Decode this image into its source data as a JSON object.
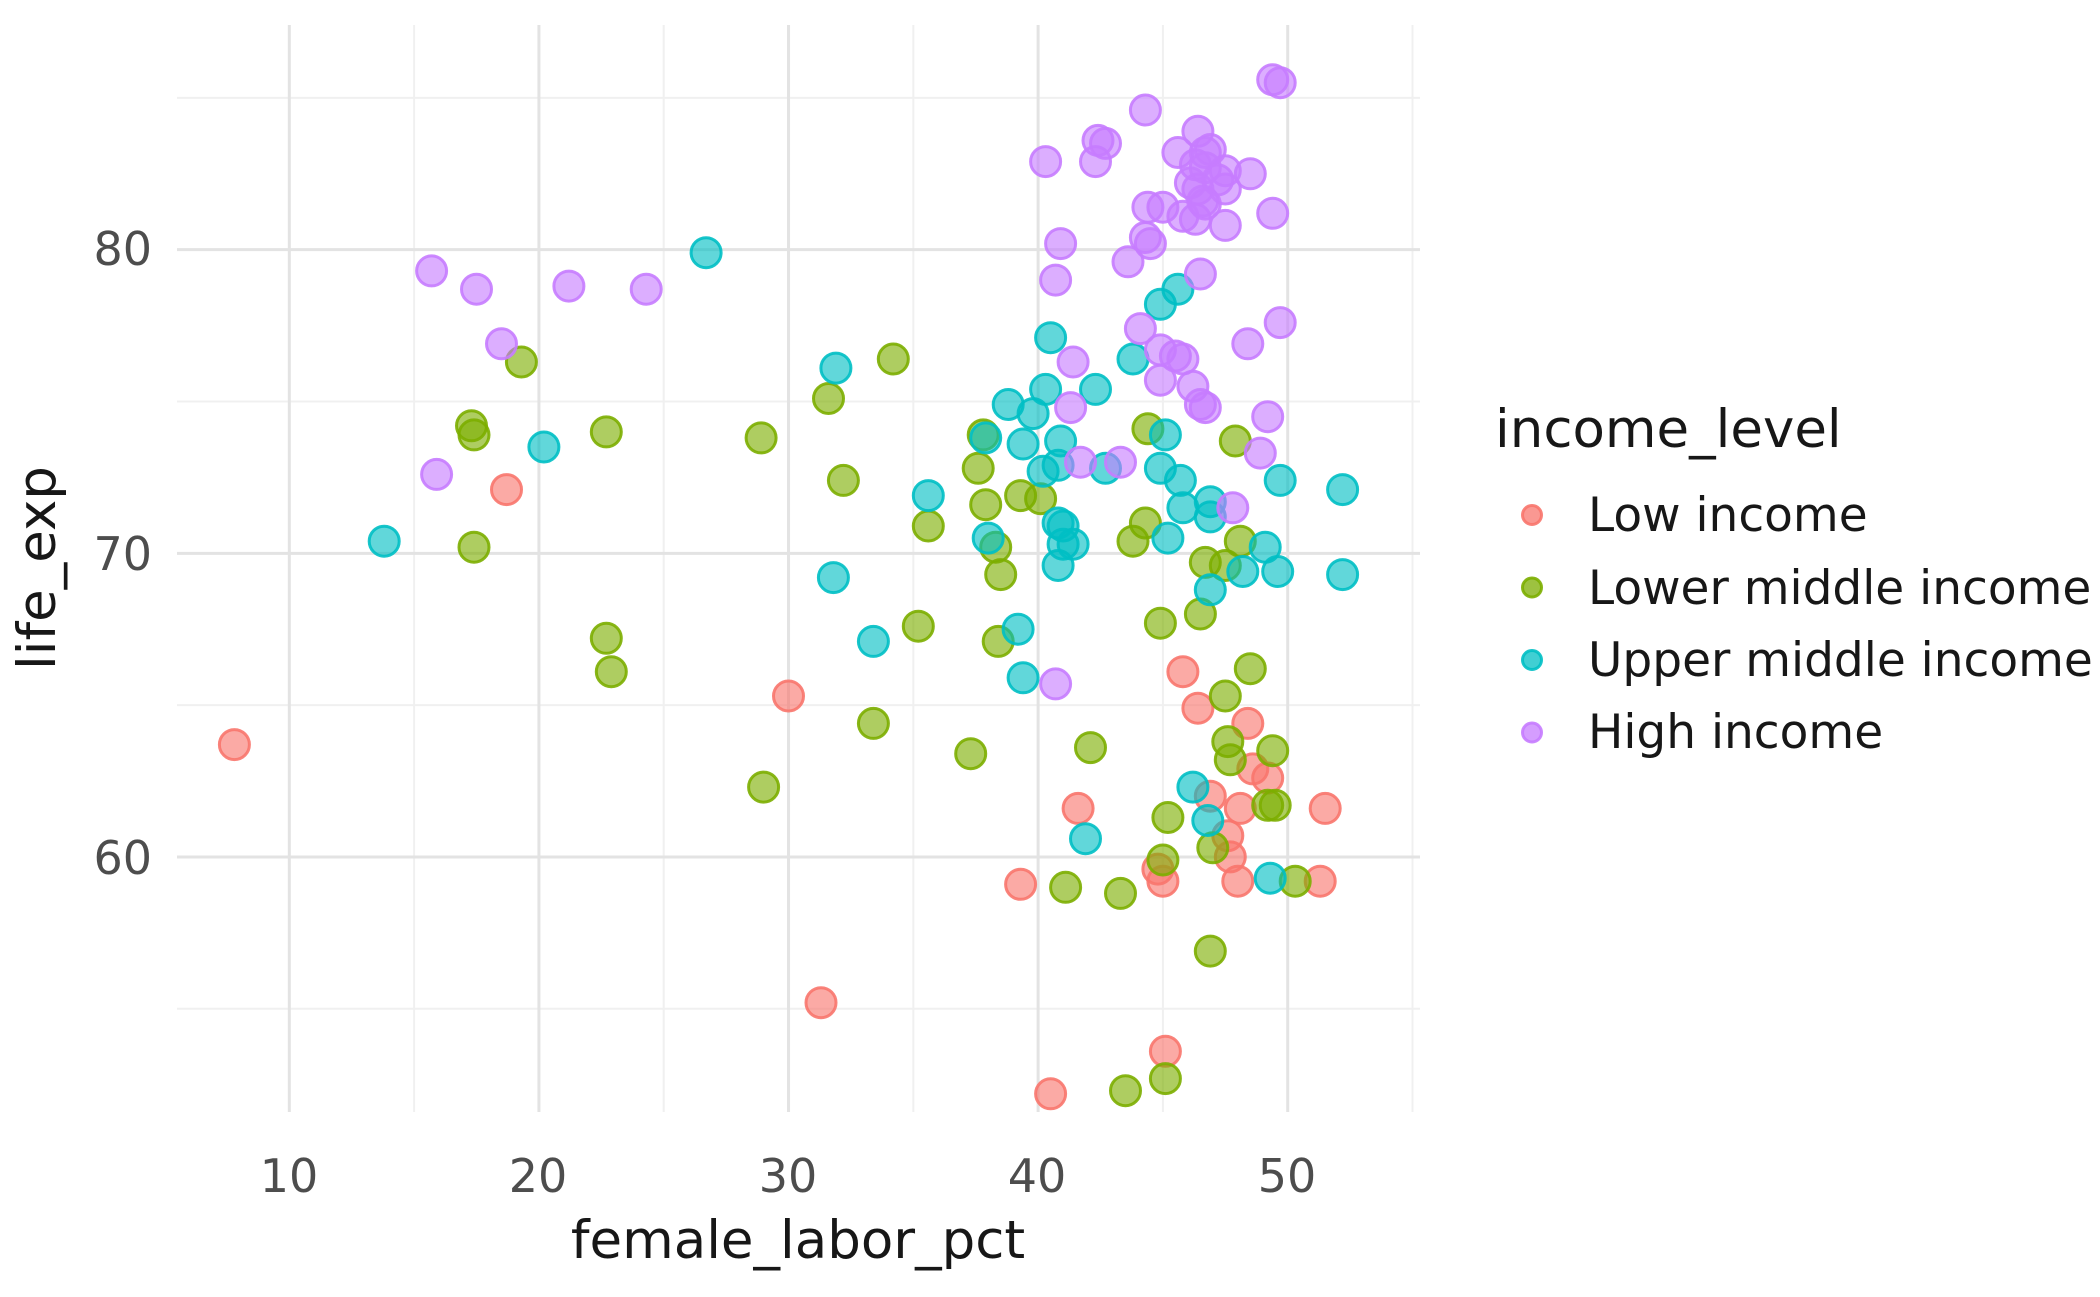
{
  "chart_data": {
    "type": "scatter",
    "title": "",
    "xlabel": "female_labor_pct",
    "ylabel": "life_exp",
    "xlim": [
      5.5,
      55.3
    ],
    "ylim": [
      51.6,
      87.4
    ],
    "grid": true,
    "x_ticks": [
      10,
      20,
      30,
      40,
      50
    ],
    "x_tick_labels": [
      "10",
      "20",
      "30",
      "40",
      "50"
    ],
    "y_ticks": [
      60,
      70,
      80
    ],
    "y_tick_labels": [
      "60",
      "70",
      "80"
    ],
    "x_minor_ticks": [
      15,
      25,
      35,
      45,
      55
    ],
    "y_minor_ticks": [
      55,
      65,
      75,
      85
    ],
    "legend": {
      "title": "income_level",
      "position": "right",
      "entries": [
        {
          "label": "Low income",
          "color": "#F8766D"
        },
        {
          "label": "Lower middle income",
          "color": "#7CAE00"
        },
        {
          "label": "Upper middle income",
          "color": "#00BFC4"
        },
        {
          "label": "High income",
          "color": "#C77CFF"
        }
      ]
    },
    "style": {
      "background": "#ffffff",
      "major_grid_color": "#e3e3e3",
      "minor_grid_color": "#f0f0f0",
      "point_fill_opacity": 0.62,
      "point_radius": 15,
      "point_stroke_width": 3
    },
    "series": [
      {
        "name": "Low income",
        "color": "#F8766D",
        "points": [
          [
            7.8,
            63.7
          ],
          [
            18.7,
            72.1
          ],
          [
            30.0,
            65.3
          ],
          [
            31.3,
            55.2
          ],
          [
            39.3,
            59.1
          ],
          [
            40.5,
            52.2
          ],
          [
            41.6,
            61.6
          ],
          [
            44.8,
            59.6
          ],
          [
            45.0,
            59.2
          ],
          [
            45.1,
            53.6
          ],
          [
            45.8,
            66.1
          ],
          [
            46.4,
            64.9
          ],
          [
            46.9,
            62.0
          ],
          [
            47.6,
            60.7
          ],
          [
            47.7,
            60.0
          ],
          [
            48.0,
            59.2
          ],
          [
            48.1,
            61.6
          ],
          [
            48.4,
            64.4
          ],
          [
            48.6,
            62.9
          ],
          [
            49.2,
            62.6
          ],
          [
            51.3,
            59.2
          ],
          [
            51.5,
            61.6
          ]
        ]
      },
      {
        "name": "Lower middle income",
        "color": "#7CAE00",
        "points": [
          [
            17.3,
            74.2
          ],
          [
            17.4,
            73.9
          ],
          [
            17.4,
            70.2
          ],
          [
            19.3,
            76.3
          ],
          [
            22.7,
            74.0
          ],
          [
            22.7,
            67.2
          ],
          [
            22.9,
            66.1
          ],
          [
            28.9,
            73.8
          ],
          [
            29.0,
            62.3
          ],
          [
            31.6,
            75.1
          ],
          [
            32.2,
            72.4
          ],
          [
            33.4,
            64.4
          ],
          [
            34.2,
            76.4
          ],
          [
            35.2,
            67.6
          ],
          [
            35.6,
            70.9
          ],
          [
            37.3,
            63.4
          ],
          [
            37.6,
            72.8
          ],
          [
            37.8,
            73.9
          ],
          [
            37.9,
            71.6
          ],
          [
            38.3,
            70.2
          ],
          [
            38.4,
            67.1
          ],
          [
            38.5,
            69.3
          ],
          [
            39.3,
            71.9
          ],
          [
            40.1,
            71.8
          ],
          [
            41.1,
            59.0
          ],
          [
            42.1,
            63.6
          ],
          [
            43.3,
            58.8
          ],
          [
            43.5,
            52.3
          ],
          [
            43.8,
            70.4
          ],
          [
            44.3,
            71.0
          ],
          [
            44.4,
            74.1
          ],
          [
            44.9,
            67.7
          ],
          [
            45.0,
            59.9
          ],
          [
            45.1,
            52.7
          ],
          [
            45.2,
            61.3
          ],
          [
            46.5,
            68.0
          ],
          [
            46.7,
            69.7
          ],
          [
            46.9,
            56.9
          ],
          [
            47.0,
            60.3
          ],
          [
            47.5,
            69.6
          ],
          [
            47.5,
            65.3
          ],
          [
            47.6,
            63.8
          ],
          [
            47.7,
            63.2
          ],
          [
            47.9,
            73.7
          ],
          [
            48.1,
            70.4
          ],
          [
            48.5,
            66.2
          ],
          [
            49.2,
            61.7
          ],
          [
            49.4,
            63.5
          ],
          [
            49.5,
            61.7
          ],
          [
            50.3,
            59.2
          ]
        ]
      },
      {
        "name": "Upper middle income",
        "color": "#00BFC4",
        "points": [
          [
            13.8,
            70.4
          ],
          [
            20.2,
            73.5
          ],
          [
            26.7,
            79.9
          ],
          [
            31.8,
            69.2
          ],
          [
            31.9,
            76.1
          ],
          [
            33.4,
            67.1
          ],
          [
            35.6,
            71.9
          ],
          [
            37.9,
            73.8
          ],
          [
            38.0,
            70.5
          ],
          [
            38.8,
            74.9
          ],
          [
            39.2,
            67.5
          ],
          [
            39.4,
            73.6
          ],
          [
            39.4,
            65.9
          ],
          [
            39.8,
            74.6
          ],
          [
            40.2,
            72.7
          ],
          [
            40.3,
            75.4
          ],
          [
            40.5,
            77.1
          ],
          [
            40.8,
            72.9
          ],
          [
            40.8,
            71.0
          ],
          [
            40.8,
            69.6
          ],
          [
            40.9,
            73.7
          ],
          [
            41.0,
            70.9
          ],
          [
            41.0,
            70.3
          ],
          [
            41.4,
            70.3
          ],
          [
            41.9,
            60.6
          ],
          [
            42.3,
            75.4
          ],
          [
            42.7,
            72.8
          ],
          [
            43.8,
            76.4
          ],
          [
            44.9,
            78.2
          ],
          [
            44.9,
            72.8
          ],
          [
            45.1,
            73.9
          ],
          [
            45.2,
            70.5
          ],
          [
            45.6,
            78.7
          ],
          [
            45.7,
            72.4
          ],
          [
            45.8,
            71.5
          ],
          [
            46.2,
            62.3
          ],
          [
            46.8,
            61.2
          ],
          [
            46.9,
            71.7
          ],
          [
            46.9,
            71.2
          ],
          [
            46.9,
            68.8
          ],
          [
            48.2,
            69.4
          ],
          [
            49.1,
            70.2
          ],
          [
            49.3,
            59.3
          ],
          [
            49.6,
            69.4
          ],
          [
            49.7,
            72.4
          ],
          [
            52.2,
            72.1
          ],
          [
            52.2,
            69.3
          ]
        ]
      },
      {
        "name": "High income",
        "color": "#C77CFF",
        "points": [
          [
            15.7,
            79.3
          ],
          [
            15.9,
            72.6
          ],
          [
            17.5,
            78.7
          ],
          [
            18.5,
            76.9
          ],
          [
            21.2,
            78.8
          ],
          [
            24.3,
            78.7
          ],
          [
            40.3,
            82.9
          ],
          [
            40.7,
            79.0
          ],
          [
            40.7,
            65.7
          ],
          [
            40.9,
            80.2
          ],
          [
            41.3,
            74.8
          ],
          [
            41.4,
            76.3
          ],
          [
            41.7,
            73.0
          ],
          [
            42.3,
            82.9
          ],
          [
            42.4,
            83.6
          ],
          [
            42.7,
            83.5
          ],
          [
            43.3,
            73.0
          ],
          [
            43.6,
            79.6
          ],
          [
            44.1,
            77.4
          ],
          [
            44.3,
            84.6
          ],
          [
            44.3,
            80.4
          ],
          [
            44.4,
            81.4
          ],
          [
            44.5,
            80.2
          ],
          [
            44.9,
            76.7
          ],
          [
            44.9,
            75.7
          ],
          [
            45.0,
            81.4
          ],
          [
            45.5,
            76.5
          ],
          [
            45.6,
            83.2
          ],
          [
            45.8,
            81.1
          ],
          [
            45.8,
            76.4
          ],
          [
            46.1,
            82.2
          ],
          [
            46.2,
            75.5
          ],
          [
            46.3,
            82.8
          ],
          [
            46.3,
            81.0
          ],
          [
            46.4,
            83.9
          ],
          [
            46.4,
            82.0
          ],
          [
            46.5,
            79.2
          ],
          [
            46.5,
            74.9
          ],
          [
            46.6,
            81.6
          ],
          [
            46.7,
            83.2
          ],
          [
            46.7,
            82.7
          ],
          [
            46.7,
            81.5
          ],
          [
            46.7,
            74.8
          ],
          [
            46.9,
            83.3
          ],
          [
            47.2,
            82.3
          ],
          [
            47.5,
            82.6
          ],
          [
            47.5,
            82.0
          ],
          [
            47.5,
            80.8
          ],
          [
            47.8,
            71.5
          ],
          [
            48.4,
            76.9
          ],
          [
            48.5,
            82.5
          ],
          [
            48.9,
            73.3
          ],
          [
            49.2,
            74.5
          ],
          [
            49.4,
            85.6
          ],
          [
            49.4,
            81.2
          ],
          [
            49.7,
            85.5
          ],
          [
            49.7,
            77.6
          ]
        ]
      }
    ]
  }
}
